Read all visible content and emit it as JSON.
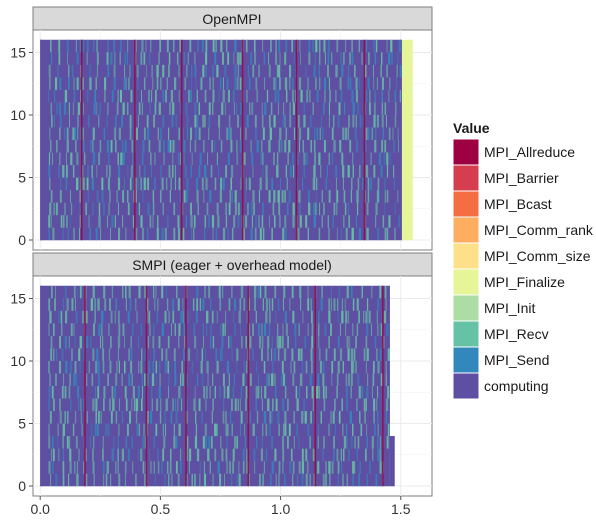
{
  "chart_data": {
    "type": "heatmap",
    "description_free": true,
    "panels": [
      {
        "title": "OpenMPI",
        "x_end": 1.505,
        "finalize_end": 1.55,
        "rank_rows": 16
      },
      {
        "title": "SMPI (eager + overhead model)",
        "x_end": 1.455,
        "last_rank_end": 1.475,
        "rank_rows": 16
      }
    ],
    "x_ticks": [
      "0.0",
      "0.5",
      "1.0",
      "1.5"
    ],
    "x_tick_values": [
      0.0,
      0.5,
      1.0,
      1.5
    ],
    "xlim": [
      -0.03,
      1.63
    ],
    "y_ticks": [
      "0",
      "5",
      "10",
      "15"
    ],
    "y_tick_values": [
      0,
      5,
      10,
      15
    ],
    "ylim": [
      -0.8,
      16.8
    ],
    "grid": true,
    "legend": {
      "title": "Value",
      "placement": "right",
      "items": [
        {
          "label": "MPI_Allreduce",
          "color": "#9e0142"
        },
        {
          "label": "MPI_Barrier",
          "color": "#d53e4f"
        },
        {
          "label": "MPI_Bcast",
          "color": "#f46d43"
        },
        {
          "label": "MPI_Comm_rank",
          "color": "#fdae61"
        },
        {
          "label": "MPI_Comm_size",
          "color": "#fee08b"
        },
        {
          "label": "MPI_Finalize",
          "color": "#e6f598"
        },
        {
          "label": "MPI_Init",
          "color": "#abdda4"
        },
        {
          "label": "MPI_Recv",
          "color": "#66c2a5"
        },
        {
          "label": "MPI_Send",
          "color": "#3288bd"
        },
        {
          "label": "computing",
          "color": "#5e4fa2"
        }
      ]
    }
  }
}
